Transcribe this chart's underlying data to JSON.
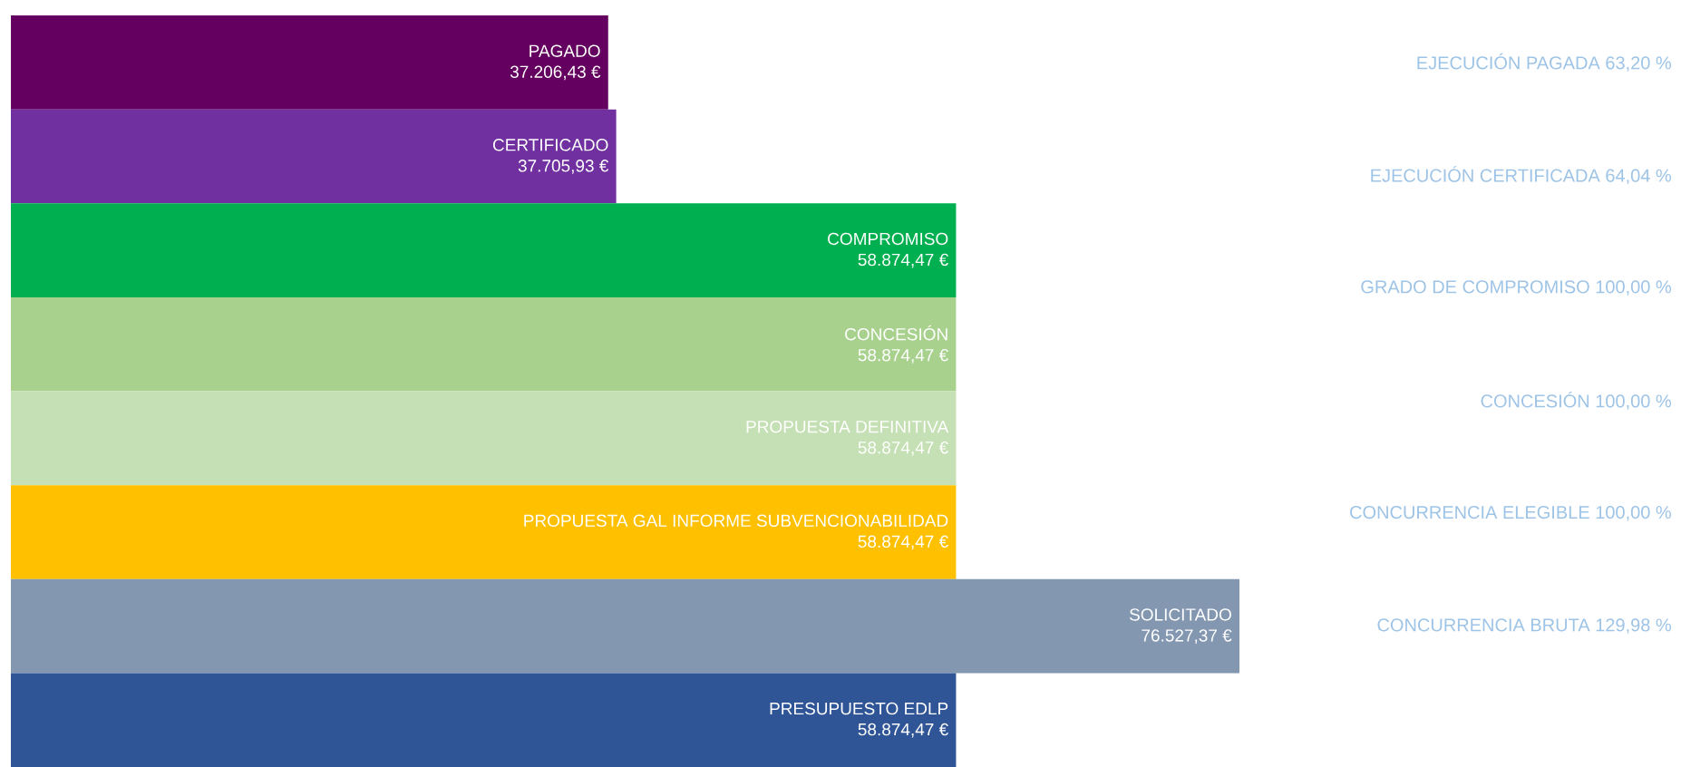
{
  "chart_data": {
    "type": "bar",
    "orientation": "horizontal",
    "categories": [
      "PAGADO",
      "CERTIFICADO",
      "COMPROMISO",
      "CONCESIÓN",
      "PROPUESTA DEFINITIVA",
      "PROPUESTA GAL INFORME SUBVENCIONABILIDAD",
      "SOLICITADO",
      "PRESUPUESTO EDLP"
    ],
    "values": [
      37206.43,
      37705.93,
      58874.47,
      58874.47,
      58874.47,
      58874.47,
      76527.37,
      58874.47
    ],
    "value_labels": [
      "37.206,43 €",
      "37.705,93 €",
      "58.874,47 €",
      "58.874,47 €",
      "58.874,47 €",
      "58.874,47 €",
      "76.527,37 €",
      "58.874,47 €"
    ],
    "colors": [
      "#64005f",
      "#7030a0",
      "#00b050",
      "#a9d18e",
      "#c5e0b4",
      "#ffc000",
      "#8497b0",
      "#2f5597"
    ],
    "annotations": [
      "EJECUCIÓN PAGADA 63,20 %",
      "EJECUCIÓN CERTIFICADA 64,04 %",
      "GRADO DE COMPROMISO 100,00 %",
      "CONCESIÓN 100,00 %",
      "CONCURRENCIA ELEGIBLE 100,00 %",
      "CONCURRENCIA BRUTA 129,98 %"
    ]
  }
}
